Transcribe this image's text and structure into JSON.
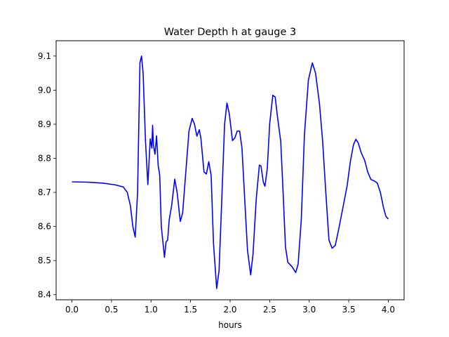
{
  "chart_data": {
    "type": "line",
    "title": "Water Depth h at gauge 3",
    "xlabel": "hours",
    "ylabel": "",
    "xlim": [
      -0.2,
      4.2
    ],
    "ylim": [
      8.385,
      9.145
    ],
    "x_ticks": [
      0.0,
      0.5,
      1.0,
      1.5,
      2.0,
      2.5,
      3.0,
      3.5,
      4.0
    ],
    "x_tick_labels": [
      "0.0",
      "0.5",
      "1.0",
      "1.5",
      "2.0",
      "2.5",
      "3.0",
      "3.5",
      "4.0"
    ],
    "y_ticks": [
      8.4,
      8.5,
      8.6,
      8.7,
      8.8,
      8.9,
      9.0,
      9.1
    ],
    "y_tick_labels": [
      "8.4",
      "8.5",
      "8.6",
      "8.7",
      "8.8",
      "8.9",
      "9.0",
      "9.1"
    ],
    "grid": false,
    "series": [
      {
        "color": "#0000ff",
        "points": [
          [
            0.0,
            8.731
          ],
          [
            0.2,
            8.73
          ],
          [
            0.4,
            8.727
          ],
          [
            0.55,
            8.722
          ],
          [
            0.65,
            8.716
          ],
          [
            0.7,
            8.7
          ],
          [
            0.74,
            8.66
          ],
          [
            0.77,
            8.6
          ],
          [
            0.8,
            8.569
          ],
          [
            0.83,
            8.7
          ],
          [
            0.86,
            9.08
          ],
          [
            0.88,
            9.1
          ],
          [
            0.9,
            9.05
          ],
          [
            0.93,
            8.85
          ],
          [
            0.96,
            8.723
          ],
          [
            0.99,
            8.857
          ],
          [
            1.01,
            8.83
          ],
          [
            1.02,
            8.897
          ],
          [
            1.03,
            8.84
          ],
          [
            1.05,
            8.812
          ],
          [
            1.07,
            8.866
          ],
          [
            1.09,
            8.78
          ],
          [
            1.11,
            8.75
          ],
          [
            1.13,
            8.6
          ],
          [
            1.17,
            8.51
          ],
          [
            1.19,
            8.555
          ],
          [
            1.21,
            8.56
          ],
          [
            1.23,
            8.62
          ],
          [
            1.26,
            8.66
          ],
          [
            1.3,
            8.739
          ],
          [
            1.33,
            8.7
          ],
          [
            1.37,
            8.615
          ],
          [
            1.4,
            8.64
          ],
          [
            1.44,
            8.76
          ],
          [
            1.48,
            8.88
          ],
          [
            1.52,
            8.917
          ],
          [
            1.55,
            8.9
          ],
          [
            1.58,
            8.865
          ],
          [
            1.61,
            8.884
          ],
          [
            1.63,
            8.86
          ],
          [
            1.67,
            8.76
          ],
          [
            1.7,
            8.754
          ],
          [
            1.73,
            8.79
          ],
          [
            1.76,
            8.75
          ],
          [
            1.79,
            8.55
          ],
          [
            1.83,
            8.418
          ],
          [
            1.86,
            8.47
          ],
          [
            1.89,
            8.65
          ],
          [
            1.93,
            8.9
          ],
          [
            1.96,
            8.962
          ],
          [
            1.99,
            8.93
          ],
          [
            2.03,
            8.852
          ],
          [
            2.06,
            8.86
          ],
          [
            2.09,
            8.88
          ],
          [
            2.12,
            8.88
          ],
          [
            2.15,
            8.83
          ],
          [
            2.18,
            8.7
          ],
          [
            2.22,
            8.53
          ],
          [
            2.26,
            8.458
          ],
          [
            2.29,
            8.52
          ],
          [
            2.33,
            8.68
          ],
          [
            2.37,
            8.78
          ],
          [
            2.39,
            8.778
          ],
          [
            2.42,
            8.73
          ],
          [
            2.44,
            8.718
          ],
          [
            2.47,
            8.77
          ],
          [
            2.5,
            8.9
          ],
          [
            2.54,
            8.985
          ],
          [
            2.57,
            8.98
          ],
          [
            2.6,
            8.92
          ],
          [
            2.64,
            8.85
          ],
          [
            2.67,
            8.7
          ],
          [
            2.7,
            8.54
          ],
          [
            2.73,
            8.495
          ],
          [
            2.78,
            8.483
          ],
          [
            2.83,
            8.465
          ],
          [
            2.86,
            8.49
          ],
          [
            2.9,
            8.62
          ],
          [
            2.94,
            8.87
          ],
          [
            2.99,
            9.03
          ],
          [
            3.04,
            9.08
          ],
          [
            3.08,
            9.05
          ],
          [
            3.13,
            8.96
          ],
          [
            3.17,
            8.85
          ],
          [
            3.21,
            8.7
          ],
          [
            3.25,
            8.56
          ],
          [
            3.29,
            8.536
          ],
          [
            3.33,
            8.545
          ],
          [
            3.38,
            8.6
          ],
          [
            3.43,
            8.66
          ],
          [
            3.48,
            8.72
          ],
          [
            3.52,
            8.79
          ],
          [
            3.56,
            8.84
          ],
          [
            3.59,
            8.856
          ],
          [
            3.62,
            8.845
          ],
          [
            3.66,
            8.815
          ],
          [
            3.7,
            8.795
          ],
          [
            3.74,
            8.76
          ],
          [
            3.78,
            8.738
          ],
          [
            3.82,
            8.734
          ],
          [
            3.86,
            8.728
          ],
          [
            3.9,
            8.7
          ],
          [
            3.94,
            8.655
          ],
          [
            3.97,
            8.63
          ],
          [
            4.0,
            8.622
          ]
        ]
      }
    ]
  }
}
